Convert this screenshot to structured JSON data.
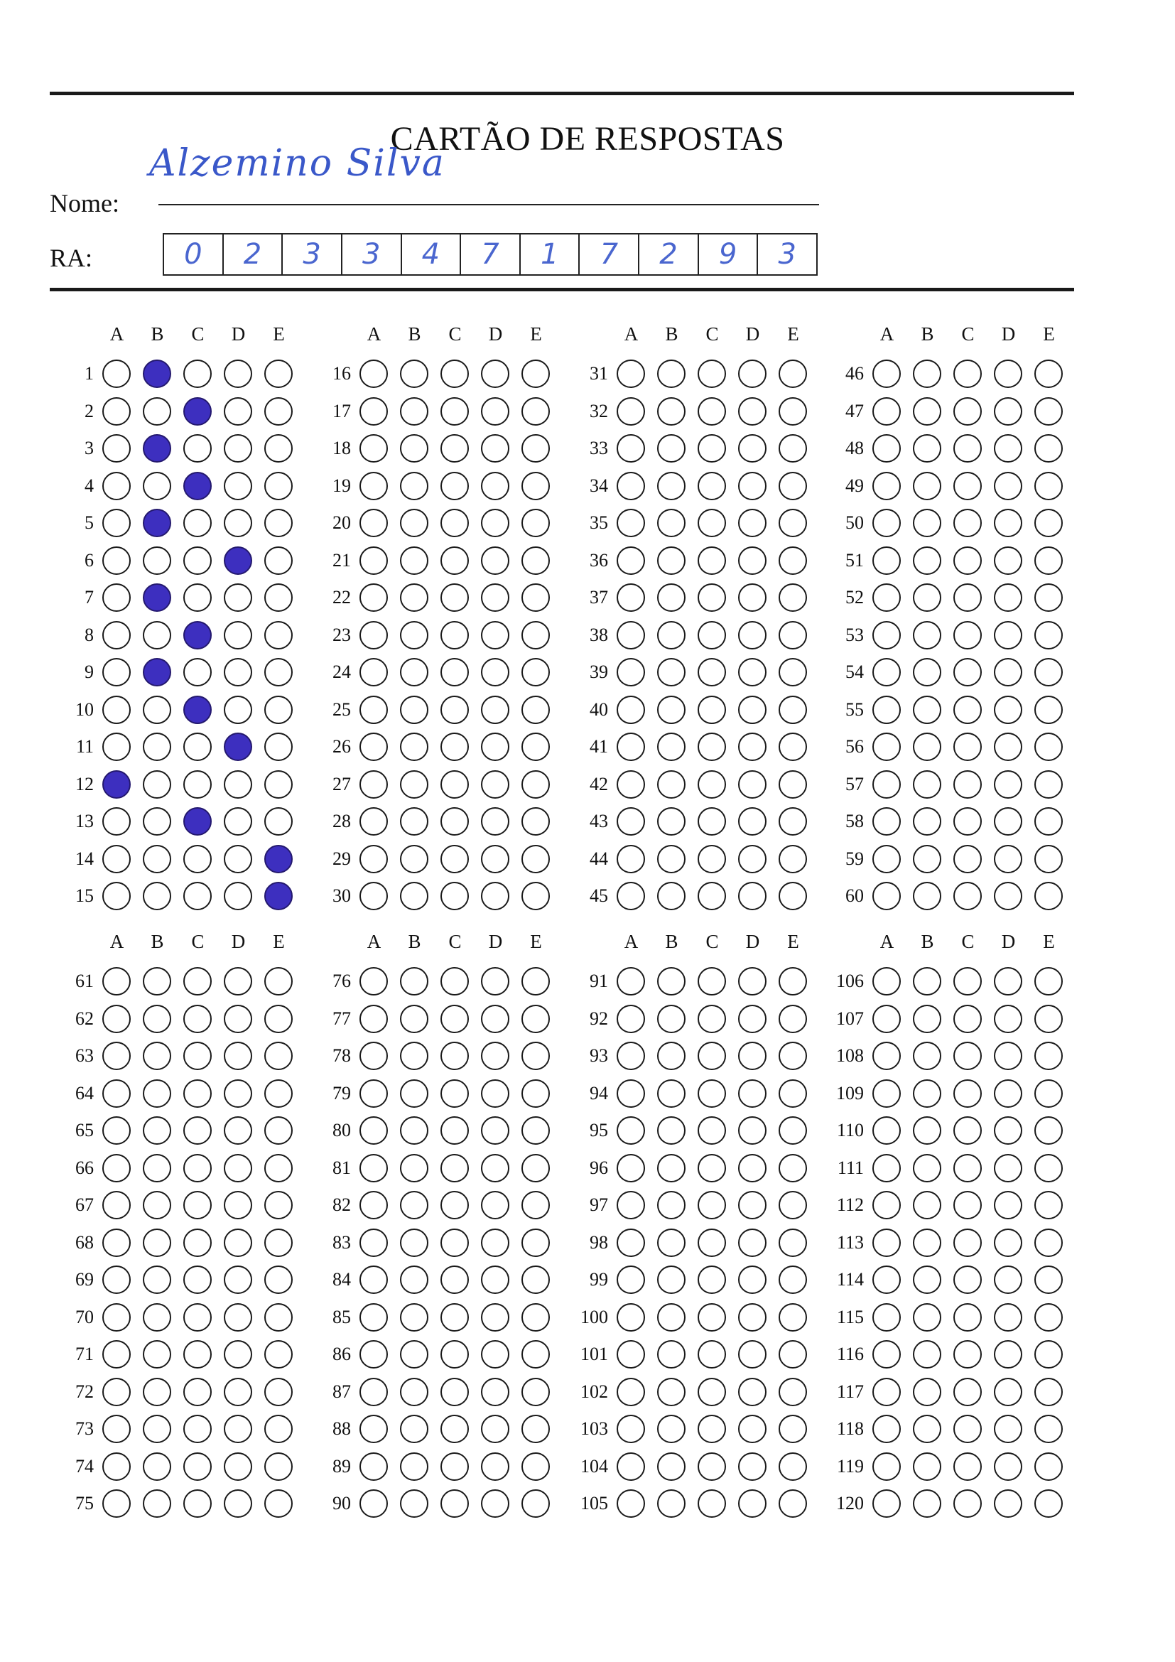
{
  "sheet": {
    "title": "CARTÃO DE RESPOSTAS",
    "name_label": "Nome:",
    "ra_label": "RA:",
    "name_handwritten": "Alzemino Silva",
    "ra_digits": [
      "0",
      "2",
      "3",
      "3",
      "4",
      "7",
      "1",
      "7",
      "2",
      "9",
      "3"
    ]
  },
  "options": [
    "A",
    "B",
    "C",
    "D",
    "E"
  ],
  "questions_per_column": 15,
  "columns": [
    {
      "start": 1
    },
    {
      "start": 16
    },
    {
      "start": 31
    },
    {
      "start": 46
    },
    {
      "start": 61
    },
    {
      "start": 76
    },
    {
      "start": 91
    },
    {
      "start": 106
    }
  ],
  "marked_answers": {
    "1": "B",
    "2": "C",
    "3": "B",
    "4": "C",
    "5": "B",
    "6": "D",
    "7": "B",
    "8": "C",
    "9": "B",
    "10": "C",
    "11": "D",
    "12": "A",
    "13": "C",
    "14": "E",
    "15": "E"
  },
  "colors": {
    "ink": "#3d2fbf",
    "pen_handwriting": "#3a58c9"
  }
}
